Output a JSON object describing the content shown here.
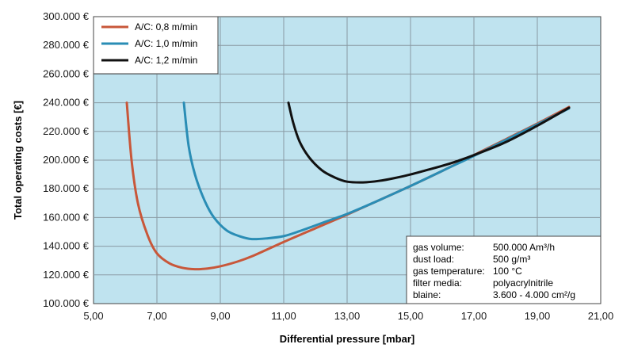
{
  "chart_data": {
    "type": "line",
    "xlabel": "Differential pressure [mbar]",
    "ylabel": "Total operating costs [€]",
    "xlim": [
      5,
      21
    ],
    "ylim": [
      100000,
      300000
    ],
    "x_ticks": [
      "5,00",
      "7,00",
      "9,00",
      "11,00",
      "13,00",
      "15,00",
      "17,00",
      "19,00",
      "21,00"
    ],
    "y_ticks": [
      "100.000 €",
      "120.000 €",
      "140.000 €",
      "160.000 €",
      "180.000 €",
      "200.000 €",
      "220.000 €",
      "240.000 €",
      "260.000 €",
      "280.000 €",
      "300.000 €"
    ],
    "grid": true,
    "legend_position": "top-left",
    "series": [
      {
        "name": "A/C: 0,8 m/min",
        "color": "#c8573a",
        "points": [
          [
            6.05,
            240000
          ],
          [
            6.2,
            200000
          ],
          [
            6.4,
            170000
          ],
          [
            6.7,
            148000
          ],
          [
            7.0,
            135000
          ],
          [
            7.4,
            128000
          ],
          [
            7.8,
            125000
          ],
          [
            8.2,
            124000
          ],
          [
            8.6,
            124500
          ],
          [
            9.0,
            126000
          ],
          [
            9.5,
            129000
          ],
          [
            10.0,
            133000
          ],
          [
            11.0,
            143000
          ],
          [
            12.0,
            152500
          ],
          [
            13.0,
            162000
          ],
          [
            14.0,
            172000
          ],
          [
            15.0,
            182000
          ],
          [
            16.0,
            192500
          ],
          [
            17.0,
            203500
          ],
          [
            18.0,
            214500
          ],
          [
            19.0,
            225500
          ],
          [
            20.0,
            237000
          ]
        ]
      },
      {
        "name": "A/C: 1,0 m/min",
        "color": "#2a8db5",
        "points": [
          [
            7.85,
            240000
          ],
          [
            8.0,
            210000
          ],
          [
            8.2,
            190000
          ],
          [
            8.5,
            172000
          ],
          [
            8.8,
            160000
          ],
          [
            9.2,
            151000
          ],
          [
            9.6,
            147000
          ],
          [
            10.0,
            145000
          ],
          [
            10.5,
            145500
          ],
          [
            11.0,
            147000
          ],
          [
            11.5,
            150500
          ],
          [
            12.0,
            154500
          ],
          [
            12.5,
            158500
          ],
          [
            13.0,
            162500
          ],
          [
            14.0,
            172000
          ],
          [
            15.0,
            182000
          ],
          [
            16.0,
            192500
          ],
          [
            17.0,
            203000
          ],
          [
            18.0,
            214000
          ],
          [
            19.0,
            225000
          ],
          [
            20.0,
            236000
          ]
        ]
      },
      {
        "name": "A/C: 1,2 m/min",
        "color": "#111111",
        "points": [
          [
            11.15,
            240000
          ],
          [
            11.3,
            226000
          ],
          [
            11.5,
            213000
          ],
          [
            11.8,
            202000
          ],
          [
            12.2,
            193000
          ],
          [
            12.6,
            188000
          ],
          [
            13.0,
            185000
          ],
          [
            13.5,
            184500
          ],
          [
            14.0,
            185500
          ],
          [
            14.5,
            187500
          ],
          [
            15.0,
            190000
          ],
          [
            15.5,
            193000
          ],
          [
            16.0,
            196000
          ],
          [
            16.5,
            199500
          ],
          [
            17.0,
            203500
          ],
          [
            18.0,
            212500
          ],
          [
            19.0,
            224000
          ],
          [
            20.0,
            236500
          ]
        ]
      }
    ]
  },
  "info_box": {
    "rows": [
      {
        "label": "gas volume:",
        "value": "500.000 Am³/h"
      },
      {
        "label": "dust load:",
        "value": "500 g/m³"
      },
      {
        "label": "gas temperature:",
        "value": "100 °C"
      },
      {
        "label": "filter media:",
        "value": "polyacrylnitrile"
      },
      {
        "label": "blaine:",
        "value": "3.600 - 4.000 cm²/g"
      }
    ]
  },
  "colors": {
    "plot_background": "#bfe3ef",
    "grid": "#8a9aa3"
  }
}
